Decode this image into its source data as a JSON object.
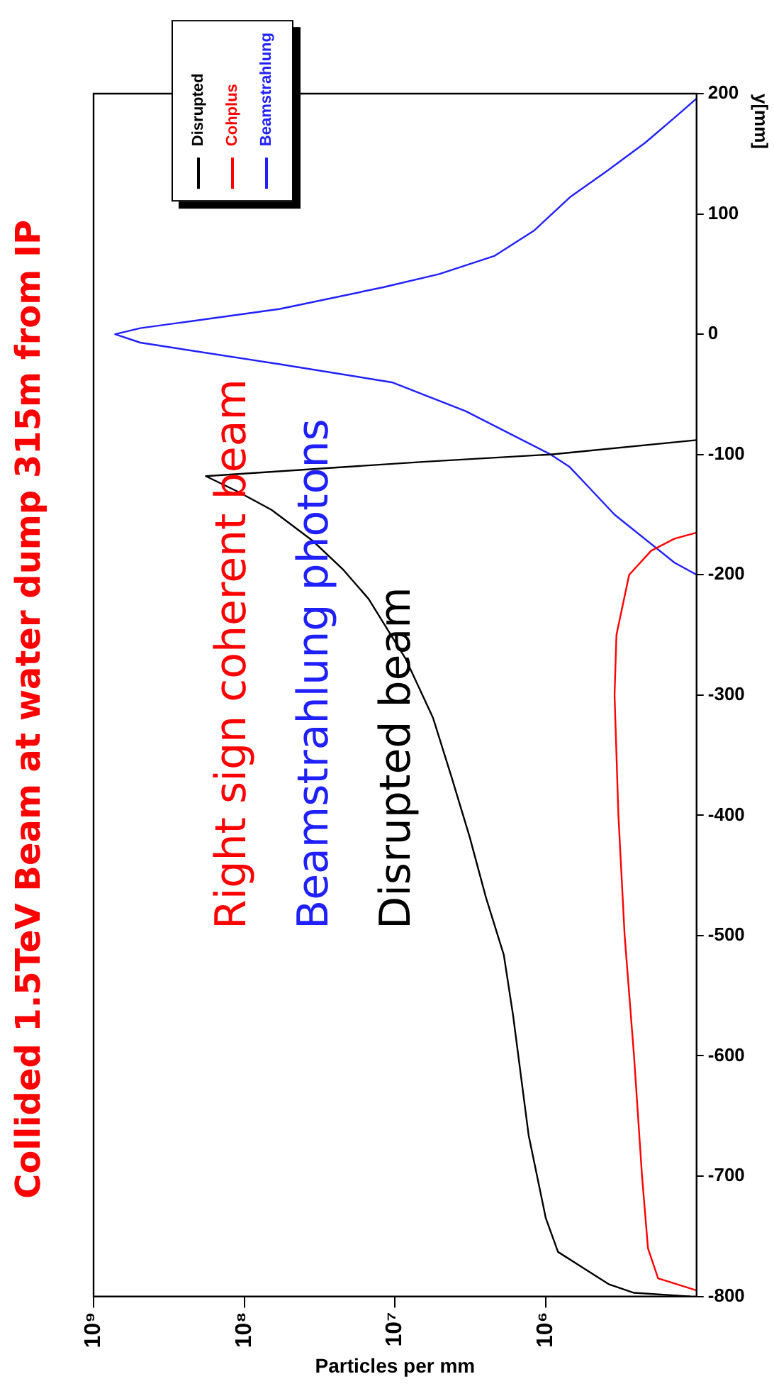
{
  "chart_data": {
    "type": "line",
    "orientation": "horizontal",
    "title": "Collided 1.5TeV Beam at water dump 315m from IP",
    "xlabel": "Particles per mm",
    "ylabel": "y[mm]",
    "annotations": [
      "Right sign coherent beam",
      "Beamstrahlung photons",
      "Disrupted beam"
    ],
    "xlim": [
      1000000000,
      100000
    ],
    "xticks": [
      {
        "value": 1000000000,
        "label": "10⁹"
      },
      {
        "value": 100000000,
        "label": "10⁸"
      },
      {
        "value": 10000000,
        "label": "10⁷"
      },
      {
        "value": 1000000,
        "label": "10⁶"
      }
    ],
    "ylim": [
      -800,
      200
    ],
    "yticks": [
      -800,
      -700,
      -600,
      -500,
      -400,
      -300,
      -200,
      -100,
      0,
      100,
      200
    ],
    "log": "x",
    "legend": "top left",
    "marker": "none",
    "line_style": "solid",
    "series": [
      {
        "name": "Disrupted",
        "color": "#000000",
        "x": [
          -800,
          -797,
          -790,
          -763,
          -735,
          -666,
          -566,
          -516,
          -468,
          -418,
          -369,
          -319,
          -270,
          -220,
          -196,
          -172,
          -146,
          -131,
          -118,
          -106,
          -100,
          -88
        ],
        "values": [
          110000,
          260000,
          380000,
          830000,
          1000000,
          1300000,
          1650000,
          1900000,
          2500000,
          3200000,
          4200000,
          5600000,
          8500000,
          15000000,
          22000000,
          35000000,
          66000000,
          110000000,
          180000000,
          6300000,
          930000,
          100000
        ]
      },
      {
        "name": "Cohplus",
        "color": "#ff0000",
        "x": [
          -795,
          -785,
          -760,
          -700,
          -600,
          -500,
          -400,
          -300,
          -250,
          -200,
          -180,
          -170,
          -165
        ],
        "values": [
          100000,
          180000,
          210000,
          230000,
          260000,
          300000,
          330000,
          350000,
          340000,
          280000,
          200000,
          140000,
          100000
        ]
      },
      {
        "name": "Beamstrahlung",
        "color": "#2020ff",
        "x": [
          -200,
          -190,
          -150,
          -126,
          -110,
          -100,
          -64,
          -40,
          -25,
          -7,
          0,
          5,
          21,
          39,
          50,
          65,
          86,
          114,
          135,
          159,
          180,
          196
        ],
        "values": [
          100000,
          140000,
          350000,
          530000,
          700000,
          930000,
          3400000,
          10500000,
          58000000,
          490000000,
          720000000,
          490000000,
          58000000,
          12000000,
          5100000,
          2200000,
          1200000,
          690000,
          400000,
          220000,
          140000,
          100000
        ]
      }
    ]
  }
}
